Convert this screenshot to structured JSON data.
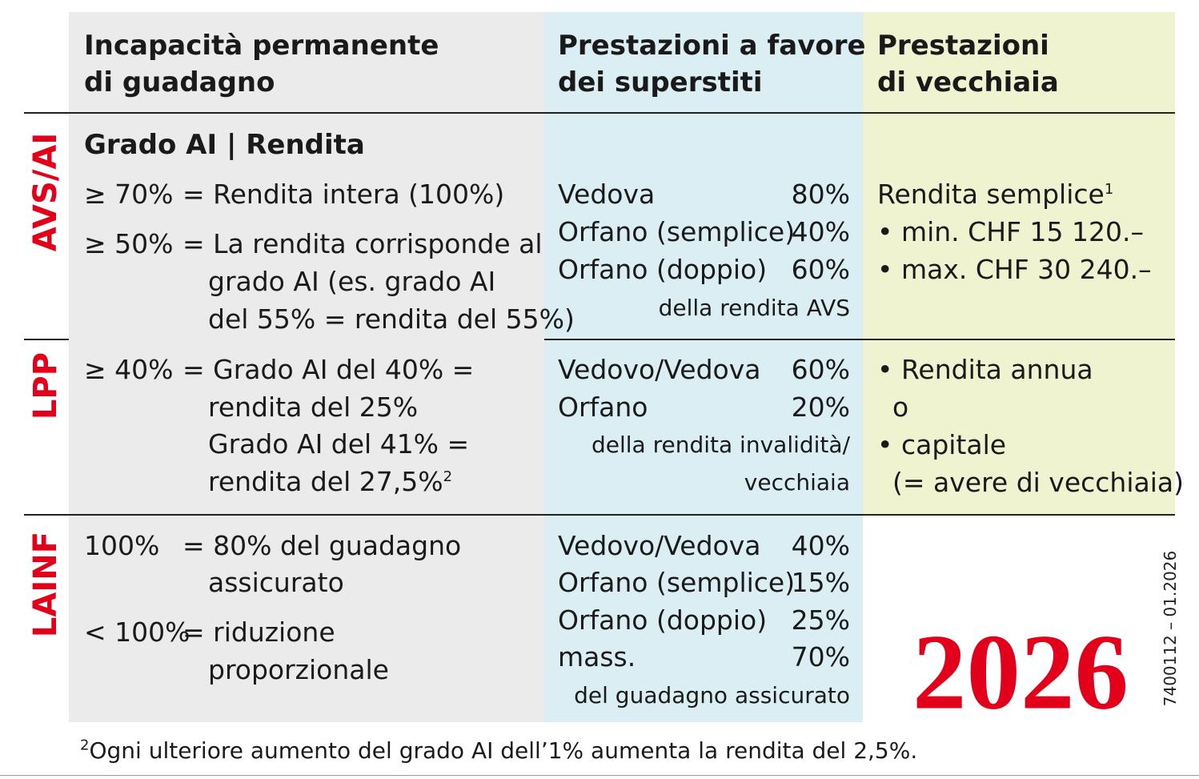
{
  "header": {
    "disability": [
      "Incapacità permanente",
      "di guadagno"
    ],
    "survivors": [
      "Prestazioni a favore",
      "dei superstiti"
    ],
    "old_age": [
      "Prestazioni",
      "di vecchiaia"
    ]
  },
  "sections": [
    {
      "label": "AVS/AI",
      "disability_heading": "Grado AI | Rendita",
      "disability": [
        {
          "threshold": "≥ 70%",
          "lines": [
            "= Rendita intera (100%)"
          ]
        },
        {
          "threshold": "≥ 50%",
          "lines": [
            "= La rendita corrisponde al",
            "grado AI (es. grado AI",
            "del 55% = rendita del 55%)"
          ]
        }
      ],
      "survivors": [
        {
          "name": "Vedova",
          "rate": "80%"
        },
        {
          "name": "Orfano (semplice)",
          "rate": "40%"
        },
        {
          "name": "Orfano (doppio)",
          "rate": "60%"
        }
      ],
      "survivors_note": [
        "della rendita AVS"
      ],
      "old_age": [
        {
          "text": "Rendita semplice",
          "sup": "1"
        },
        {
          "text": "• min. CHF 15 120.–"
        },
        {
          "text": "• max. CHF 30 240.–"
        }
      ]
    },
    {
      "label": "LPP",
      "disability": [
        {
          "threshold": "≥ 40%",
          "lines": [
            "= Grado AI del 40% =",
            "rendita del 25%",
            "Grado AI del 41% =",
            "rendita del 27,5%"
          ],
          "footnote_ref": "2"
        }
      ],
      "survivors": [
        {
          "name": "Vedovo/Vedova",
          "rate": "60%"
        },
        {
          "name": "Orfano",
          "rate": "20%"
        }
      ],
      "survivors_note": [
        "della rendita invalidità/",
        "vecchiaia"
      ],
      "old_age": [
        {
          "text": "• Rendita annua"
        },
        {
          "text": "o"
        },
        {
          "text": "• capitale"
        },
        {
          "text": "(= avere di vecchiaia)"
        }
      ]
    },
    {
      "label": "LAINF",
      "disability": [
        {
          "threshold": "100%",
          "lines": [
            "= 80% del guadagno",
            "assicurato"
          ]
        },
        {
          "threshold": "< 100%",
          "lines": [
            "= riduzione",
            "proporzionale"
          ]
        }
      ],
      "survivors": [
        {
          "name": "Vedovo/Vedova",
          "rate": "40%"
        },
        {
          "name": "Orfano (semplice)",
          "rate": "15%"
        },
        {
          "name": "Orfano (doppio)",
          "rate": "25%"
        },
        {
          "name": "mass.",
          "rate": "70%"
        }
      ],
      "survivors_note": [
        "del guadagno assicurato"
      ]
    }
  ],
  "year": "2026",
  "code": "7400112 – 01.2026",
  "footnote": {
    "number": "2",
    "text": "Ogni ulteriore aumento del grado AI dell’1% aumenta la rendita del 2,5%."
  }
}
